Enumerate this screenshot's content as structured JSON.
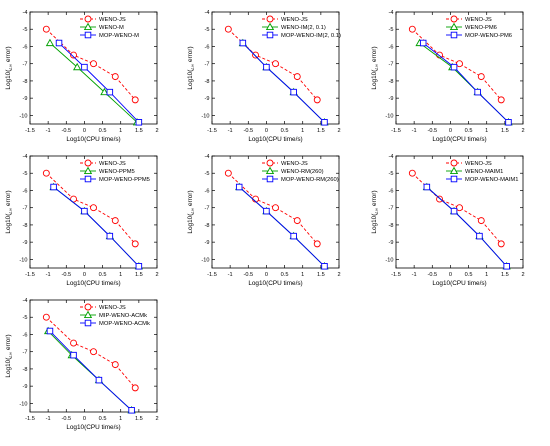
{
  "chart_data": [
    {
      "type": "line",
      "xlabel": "Log10(CPU time/s)",
      "ylabel_prefix": "Log10(",
      "ylabel_sub": "∞",
      "ylabel_suffix": " error)",
      "xlim": [
        -1.5,
        2.0
      ],
      "ylim": [
        -10.5,
        -4
      ],
      "xticks": [
        "-1.5",
        "-1",
        "-0.5",
        "0",
        "0.5",
        "1",
        "1.5",
        "2"
      ],
      "yticks": [
        "-4",
        "-5",
        "-6",
        "-7",
        "-8",
        "-9",
        "-10"
      ],
      "legend_position": "top-right",
      "series": [
        {
          "name": "WENO-JS",
          "color": "#ff0000",
          "marker": "circle",
          "dash": true,
          "x": [
            -1.05,
            -0.3,
            0.25,
            0.85,
            1.4
          ],
          "y": [
            -5.0,
            -6.5,
            -7.0,
            -7.75,
            -9.1
          ]
        },
        {
          "name": "WENO-M",
          "color": "#00a000",
          "marker": "triangle",
          "dash": false,
          "x": [
            -0.95,
            -0.2,
            0.55,
            1.45
          ],
          "y": [
            -5.8,
            -7.2,
            -8.65,
            -10.4
          ]
        },
        {
          "name": "MOP-WENO-M",
          "color": "#0000ff",
          "marker": "square",
          "dash": false,
          "x": [
            -0.7,
            0.0,
            0.7,
            1.5
          ],
          "y": [
            -5.8,
            -7.2,
            -8.65,
            -10.4
          ]
        }
      ]
    },
    {
      "type": "line",
      "xlabel": "Log10(CPU time/s)",
      "ylabel_prefix": "Log10(",
      "ylabel_sub": "∞",
      "ylabel_suffix": " error)",
      "xlim": [
        -1.5,
        2.0
      ],
      "ylim": [
        -10.5,
        -4
      ],
      "xticks": [
        "-1.5",
        "-1",
        "-0.5",
        "0",
        "0.5",
        "1",
        "1.5",
        "2"
      ],
      "yticks": [
        "-4",
        "-5",
        "-6",
        "-7",
        "-8",
        "-9",
        "-10"
      ],
      "legend_position": "top-right",
      "series": [
        {
          "name": "WENO-JS",
          "color": "#ff0000",
          "marker": "circle",
          "dash": true,
          "x": [
            -1.05,
            -0.3,
            0.25,
            0.85,
            1.4
          ],
          "y": [
            -5.0,
            -6.5,
            -7.0,
            -7.75,
            -9.1
          ]
        },
        {
          "name": "WENO-IM(2, 0.1)",
          "color": "#00a000",
          "marker": "triangle",
          "dash": false,
          "x": [
            -0.65,
            0.0,
            0.75,
            1.6
          ],
          "y": [
            -5.8,
            -7.2,
            -8.65,
            -10.4
          ]
        },
        {
          "name": "MOP-WENO-IM(2, 0.1)",
          "color": "#0000ff",
          "marker": "square",
          "dash": false,
          "x": [
            -0.65,
            0.0,
            0.75,
            1.6
          ],
          "y": [
            -5.8,
            -7.2,
            -8.65,
            -10.4
          ]
        }
      ]
    },
    {
      "type": "line",
      "xlabel": "Log10(CPU time/s)",
      "ylabel_prefix": "Log10(",
      "ylabel_sub": "∞",
      "ylabel_suffix": " error)",
      "xlim": [
        -1.5,
        2.0
      ],
      "ylim": [
        -10.5,
        -4
      ],
      "xticks": [
        "-1.5",
        "-1",
        "-0.5",
        "0",
        "0.5",
        "1",
        "1.5",
        "2"
      ],
      "yticks": [
        "-4",
        "-5",
        "-6",
        "-7",
        "-8",
        "-9",
        "-10"
      ],
      "legend_position": "top-right",
      "series": [
        {
          "name": "WENO-JS",
          "color": "#ff0000",
          "marker": "circle",
          "dash": true,
          "x": [
            -1.05,
            -0.3,
            0.25,
            0.85,
            1.4
          ],
          "y": [
            -5.0,
            -6.5,
            -7.0,
            -7.75,
            -9.1
          ]
        },
        {
          "name": "WENO-PM6",
          "color": "#00a000",
          "marker": "triangle",
          "dash": false,
          "x": [
            -0.85,
            0.05,
            0.75,
            1.6
          ],
          "y": [
            -5.8,
            -7.2,
            -8.65,
            -10.4
          ]
        },
        {
          "name": "MOP-WENO-PM6",
          "color": "#0000ff",
          "marker": "square",
          "dash": false,
          "x": [
            -0.75,
            0.1,
            0.75,
            1.6
          ],
          "y": [
            -5.8,
            -7.2,
            -8.65,
            -10.4
          ]
        }
      ]
    },
    {
      "type": "line",
      "xlabel": "Log10(CPU time/s)",
      "ylabel_prefix": "Log10(",
      "ylabel_sub": "∞",
      "ylabel_suffix": " error)",
      "xlim": [
        -1.5,
        2.0
      ],
      "ylim": [
        -10.5,
        -4
      ],
      "xticks": [
        "-1.5",
        "-1",
        "-0.5",
        "0",
        "0.5",
        "1",
        "1.5",
        "2"
      ],
      "yticks": [
        "-4",
        "-5",
        "-6",
        "-7",
        "-8",
        "-9",
        "-10"
      ],
      "legend_position": "top-right",
      "series": [
        {
          "name": "WENO-JS",
          "color": "#ff0000",
          "marker": "circle",
          "dash": true,
          "x": [
            -1.05,
            -0.3,
            0.25,
            0.85,
            1.4
          ],
          "y": [
            -5.0,
            -6.5,
            -7.0,
            -7.75,
            -9.1
          ]
        },
        {
          "name": "WENO-PPM5",
          "color": "#00a000",
          "marker": "triangle",
          "dash": false,
          "x": [
            -0.85,
            0.0,
            0.7,
            1.5
          ],
          "y": [
            -5.8,
            -7.2,
            -8.65,
            -10.4
          ]
        },
        {
          "name": "MOP-WENO-PPM5",
          "color": "#0000ff",
          "marker": "square",
          "dash": false,
          "x": [
            -0.85,
            0.0,
            0.7,
            1.5
          ],
          "y": [
            -5.8,
            -7.2,
            -8.65,
            -10.4
          ]
        }
      ]
    },
    {
      "type": "line",
      "xlabel": "Log10(CPU time/s)",
      "ylabel_prefix": "Log10(",
      "ylabel_sub": "∞",
      "ylabel_suffix": " error)",
      "xlim": [
        -1.5,
        2.0
      ],
      "ylim": [
        -10.5,
        -4
      ],
      "xticks": [
        "-1.5",
        "-1",
        "-0.5",
        "0",
        "0.5",
        "1",
        "1.5",
        "2"
      ],
      "yticks": [
        "-4",
        "-5",
        "-6",
        "-7",
        "-8",
        "-9",
        "-10"
      ],
      "legend_position": "top-right",
      "series": [
        {
          "name": "WENO-JS",
          "color": "#ff0000",
          "marker": "circle",
          "dash": true,
          "x": [
            -1.05,
            -0.3,
            0.25,
            0.85,
            1.4
          ],
          "y": [
            -5.0,
            -6.5,
            -7.0,
            -7.75,
            -9.1
          ]
        },
        {
          "name": "WENO-RM(260)",
          "color": "#00a000",
          "marker": "triangle",
          "dash": false,
          "x": [
            -0.75,
            0.0,
            0.75,
            1.6
          ],
          "y": [
            -5.8,
            -7.2,
            -8.65,
            -10.4
          ]
        },
        {
          "name": "MOP-WENO-RM(260)",
          "color": "#0000ff",
          "marker": "square",
          "dash": false,
          "x": [
            -0.75,
            0.0,
            0.75,
            1.6
          ],
          "y": [
            -5.8,
            -7.2,
            -8.65,
            -10.4
          ]
        }
      ]
    },
    {
      "type": "line",
      "xlabel": "Log10(CPU time/s)",
      "ylabel_prefix": "Log10(",
      "ylabel_sub": "∞",
      "ylabel_suffix": " error)",
      "xlim": [
        -1.5,
        2.0
      ],
      "ylim": [
        -10.5,
        -4
      ],
      "xticks": [
        "-1.5",
        "-1",
        "-0.5",
        "0",
        "0.5",
        "1",
        "1.5",
        "2"
      ],
      "yticks": [
        "-4",
        "-5",
        "-6",
        "-7",
        "-8",
        "-9",
        "-10"
      ],
      "legend_position": "top-right",
      "series": [
        {
          "name": "WENO-JS",
          "color": "#ff0000",
          "marker": "circle",
          "dash": true,
          "x": [
            -1.05,
            -0.3,
            0.25,
            0.85,
            1.4
          ],
          "y": [
            -5.0,
            -6.5,
            -7.0,
            -7.75,
            -9.1
          ]
        },
        {
          "name": "WENO-MAIM1",
          "color": "#00a000",
          "marker": "triangle",
          "dash": false,
          "x": [
            -0.65,
            0.1,
            0.8,
            1.55
          ],
          "y": [
            -5.8,
            -7.2,
            -8.65,
            -10.4
          ]
        },
        {
          "name": "MOP-WENO-MAIM1",
          "color": "#0000ff",
          "marker": "square",
          "dash": false,
          "x": [
            -0.65,
            0.1,
            0.8,
            1.55
          ],
          "y": [
            -5.8,
            -7.2,
            -8.65,
            -10.4
          ]
        }
      ]
    },
    {
      "type": "line",
      "xlabel": "Log10(CPU time/s)",
      "ylabel_prefix": "Log10(",
      "ylabel_sub": "∞",
      "ylabel_suffix": " error)",
      "xlim": [
        -1.5,
        2.0
      ],
      "ylim": [
        -10.5,
        -4
      ],
      "xticks": [
        "-1.5",
        "-1",
        "-0.5",
        "0",
        "0.5",
        "1",
        "1.5",
        "2"
      ],
      "yticks": [
        "-4",
        "-5",
        "-6",
        "-7",
        "-8",
        "-9",
        "-10"
      ],
      "legend_position": "top-right",
      "series": [
        {
          "name": "WENO-JS",
          "color": "#ff0000",
          "marker": "circle",
          "dash": true,
          "x": [
            -1.05,
            -0.3,
            0.25,
            0.85,
            1.4
          ],
          "y": [
            -5.0,
            -6.5,
            -7.0,
            -7.75,
            -9.1
          ]
        },
        {
          "name": "MIP-WENO-ACMk",
          "color": "#00a000",
          "marker": "triangle",
          "dash": false,
          "x": [
            -1.0,
            -0.35,
            0.4,
            1.3
          ],
          "y": [
            -5.8,
            -7.2,
            -8.65,
            -10.4
          ]
        },
        {
          "name": "MOP-WENO-ACMk",
          "color": "#0000ff",
          "marker": "square",
          "dash": false,
          "x": [
            -0.95,
            -0.3,
            0.4,
            1.3
          ],
          "y": [
            -5.8,
            -7.2,
            -8.65,
            -10.4
          ]
        }
      ]
    }
  ]
}
